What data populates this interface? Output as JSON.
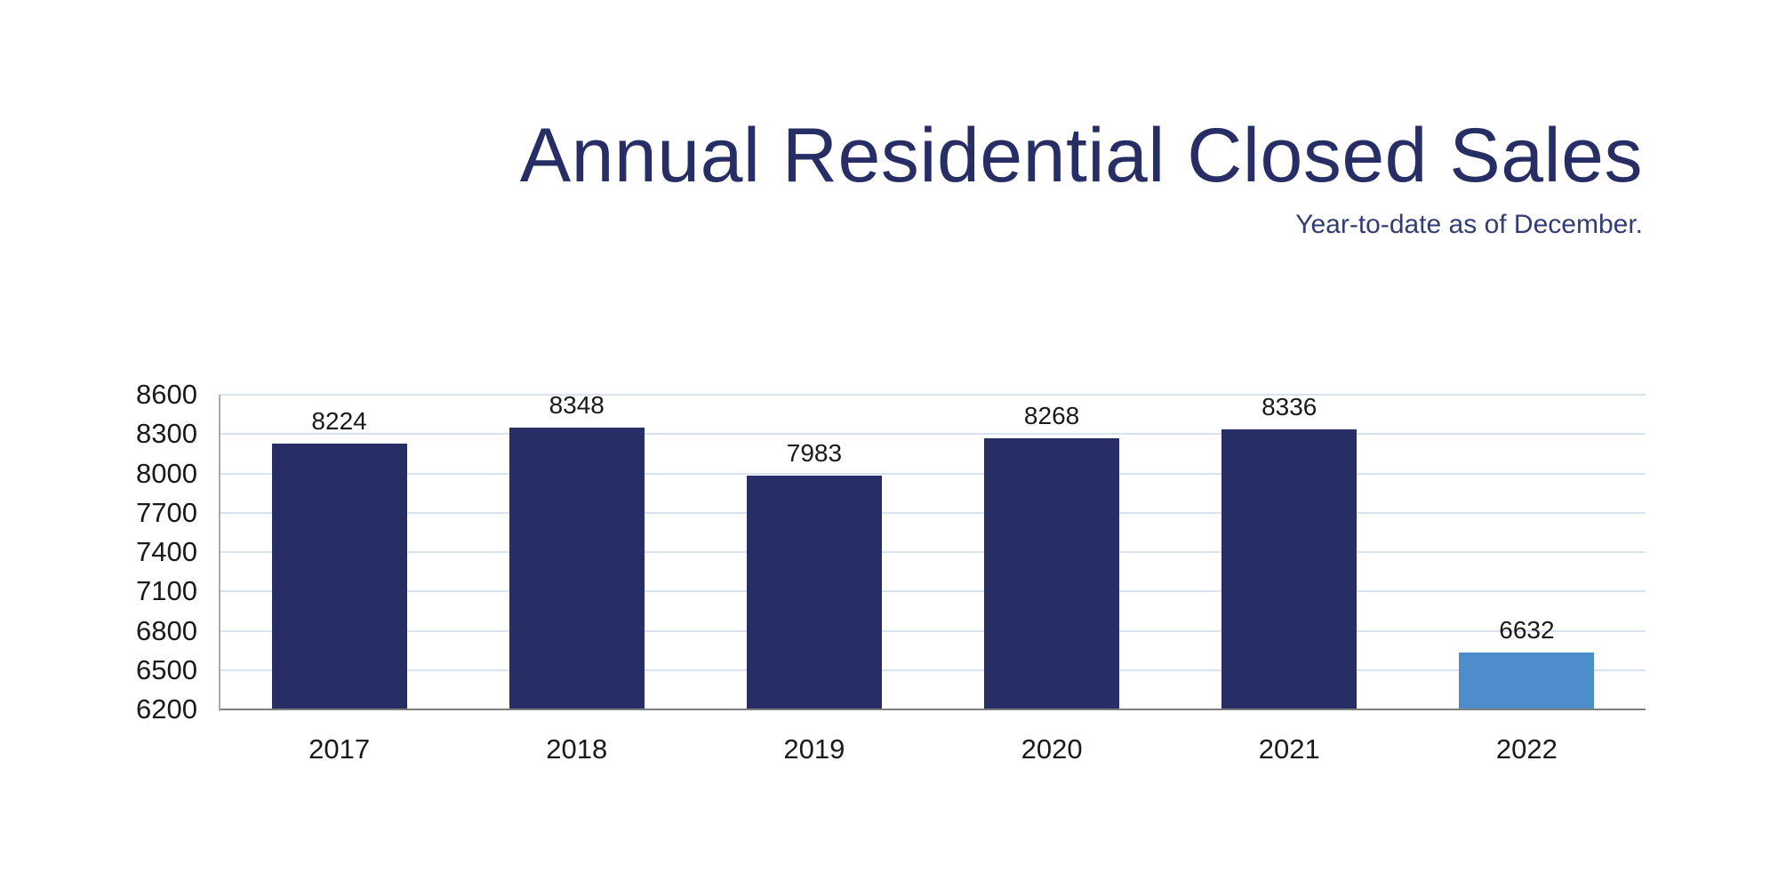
{
  "header": {
    "title": "Annual Residential Closed Sales",
    "subtitle": "Year-to-date as of December."
  },
  "chart_data": {
    "type": "bar",
    "title": "Annual Residential Closed Sales",
    "subtitle": "Year-to-date as of December.",
    "categories": [
      "2017",
      "2018",
      "2019",
      "2020",
      "2021",
      "2022"
    ],
    "values": [
      8224,
      8348,
      7983,
      8268,
      8336,
      6632
    ],
    "data_labels": [
      "8224",
      "8348",
      "7983",
      "8268",
      "8336",
      "6632"
    ],
    "ylim": [
      6200,
      8600
    ],
    "yticks": [
      6200,
      6500,
      6800,
      7100,
      7400,
      7700,
      8000,
      8300,
      8600
    ],
    "ytick_labels": [
      "6200",
      "6500",
      "6800",
      "7100",
      "7400",
      "7700",
      "8000",
      "8300",
      "8600"
    ],
    "xlabel": "",
    "ylabel": "",
    "grid": true,
    "legend": false,
    "colors": {
      "bar_default": "#272E66",
      "bar_highlight": "#4D8DCB",
      "bar_colors": [
        "#272E66",
        "#272E66",
        "#272E66",
        "#272E66",
        "#272E66",
        "#4D8DCB"
      ],
      "gridline": "#DAE2F0",
      "baseline": "#7F7F7F",
      "axis_line": "#ABABAB",
      "title_text": "#272E66",
      "subtitle_text": "#333D74",
      "label_text": "#1A1A1A"
    }
  }
}
